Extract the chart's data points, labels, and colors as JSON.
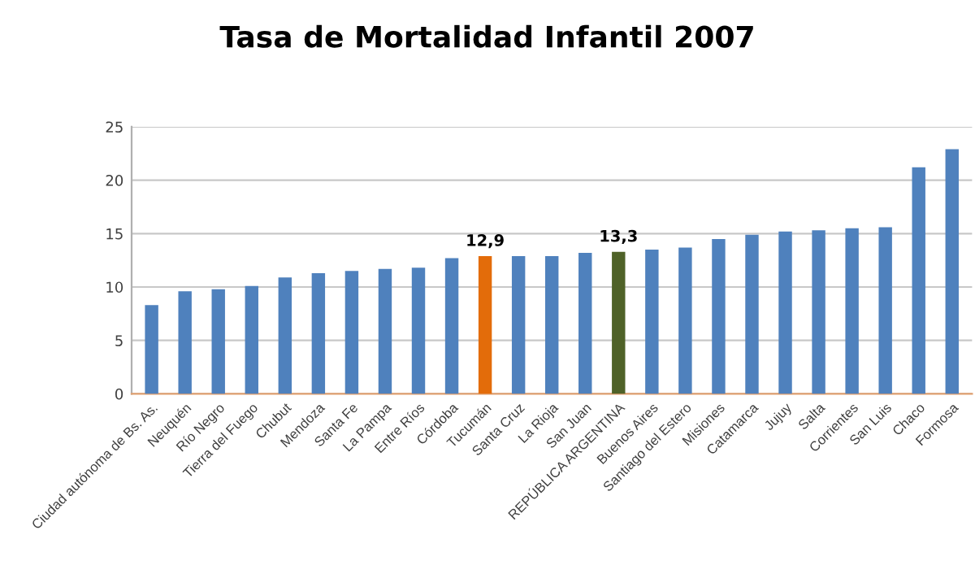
{
  "chart_data": {
    "type": "bar",
    "title": "Tasa de Mortalidad Infantil 2007",
    "categories": [
      "Ciudad autónoma de Bs. As.",
      "Neuquén",
      "Río Negro",
      "Tierra del Fuego",
      "Chubut",
      "Mendoza",
      "Santa Fe",
      "La Pampa",
      "Entre Ríos",
      "Córdoba",
      "Tucumán",
      "Santa Cruz",
      "La Rioja",
      "San Juan",
      "REPÚBLICA ARGENTINA",
      "Buenos Aires",
      "Santiago del Estero",
      "Misiones",
      "Catamarca",
      "Jujuy",
      "Salta",
      "Corrientes",
      "San Luis",
      "Chaco",
      "Formosa"
    ],
    "values": [
      8.3,
      9.6,
      9.8,
      10.1,
      10.9,
      11.3,
      11.5,
      11.7,
      11.8,
      12.7,
      12.9,
      12.9,
      12.9,
      13.2,
      13.3,
      13.5,
      13.7,
      14.5,
      14.9,
      15.2,
      15.3,
      15.5,
      15.6,
      21.2,
      22.9
    ],
    "colors": [
      "#4f81bd",
      "#4f81bd",
      "#4f81bd",
      "#4f81bd",
      "#4f81bd",
      "#4f81bd",
      "#4f81bd",
      "#4f81bd",
      "#4f81bd",
      "#4f81bd",
      "#e36c0a",
      "#4f81bd",
      "#4f81bd",
      "#4f81bd",
      "#4f6228",
      "#4f81bd",
      "#4f81bd",
      "#4f81bd",
      "#4f81bd",
      "#4f81bd",
      "#4f81bd",
      "#4f81bd",
      "#4f81bd",
      "#4f81bd",
      "#4f81bd"
    ],
    "value_labels": [
      null,
      null,
      null,
      null,
      null,
      null,
      null,
      null,
      null,
      null,
      "12,9",
      null,
      null,
      null,
      "13,3",
      null,
      null,
      null,
      null,
      null,
      null,
      null,
      null,
      null,
      null
    ],
    "ylim": [
      0,
      25
    ],
    "yticks": [
      0,
      5,
      10,
      15,
      20,
      25
    ],
    "grid": "y",
    "legend": false
  }
}
